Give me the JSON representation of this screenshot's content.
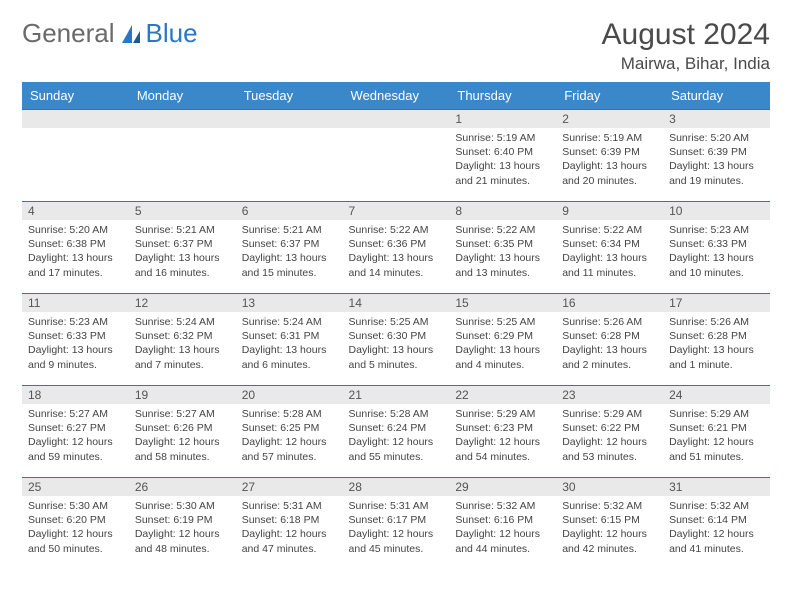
{
  "brand": {
    "word1": "General",
    "word2": "Blue"
  },
  "title": "August 2024",
  "location": "Mairwa, Bihar, India",
  "colors": {
    "header_bg": "#3a87c9",
    "border": "#2a78c4",
    "datebar_bg": "#e9e9e9",
    "text": "#444444",
    "brand_gray": "#6a6a6a",
    "brand_blue": "#2a78c4"
  },
  "day_names": [
    "Sunday",
    "Monday",
    "Tuesday",
    "Wednesday",
    "Thursday",
    "Friday",
    "Saturday"
  ],
  "weeks": [
    [
      null,
      null,
      null,
      null,
      {
        "d": "1",
        "sunrise": "5:19 AM",
        "sunset": "6:40 PM",
        "daylight": "13 hours and 21 minutes."
      },
      {
        "d": "2",
        "sunrise": "5:19 AM",
        "sunset": "6:39 PM",
        "daylight": "13 hours and 20 minutes."
      },
      {
        "d": "3",
        "sunrise": "5:20 AM",
        "sunset": "6:39 PM",
        "daylight": "13 hours and 19 minutes."
      }
    ],
    [
      {
        "d": "4",
        "sunrise": "5:20 AM",
        "sunset": "6:38 PM",
        "daylight": "13 hours and 17 minutes."
      },
      {
        "d": "5",
        "sunrise": "5:21 AM",
        "sunset": "6:37 PM",
        "daylight": "13 hours and 16 minutes."
      },
      {
        "d": "6",
        "sunrise": "5:21 AM",
        "sunset": "6:37 PM",
        "daylight": "13 hours and 15 minutes."
      },
      {
        "d": "7",
        "sunrise": "5:22 AM",
        "sunset": "6:36 PM",
        "daylight": "13 hours and 14 minutes."
      },
      {
        "d": "8",
        "sunrise": "5:22 AM",
        "sunset": "6:35 PM",
        "daylight": "13 hours and 13 minutes."
      },
      {
        "d": "9",
        "sunrise": "5:22 AM",
        "sunset": "6:34 PM",
        "daylight": "13 hours and 11 minutes."
      },
      {
        "d": "10",
        "sunrise": "5:23 AM",
        "sunset": "6:33 PM",
        "daylight": "13 hours and 10 minutes."
      }
    ],
    [
      {
        "d": "11",
        "sunrise": "5:23 AM",
        "sunset": "6:33 PM",
        "daylight": "13 hours and 9 minutes."
      },
      {
        "d": "12",
        "sunrise": "5:24 AM",
        "sunset": "6:32 PM",
        "daylight": "13 hours and 7 minutes."
      },
      {
        "d": "13",
        "sunrise": "5:24 AM",
        "sunset": "6:31 PM",
        "daylight": "13 hours and 6 minutes."
      },
      {
        "d": "14",
        "sunrise": "5:25 AM",
        "sunset": "6:30 PM",
        "daylight": "13 hours and 5 minutes."
      },
      {
        "d": "15",
        "sunrise": "5:25 AM",
        "sunset": "6:29 PM",
        "daylight": "13 hours and 4 minutes."
      },
      {
        "d": "16",
        "sunrise": "5:26 AM",
        "sunset": "6:28 PM",
        "daylight": "13 hours and 2 minutes."
      },
      {
        "d": "17",
        "sunrise": "5:26 AM",
        "sunset": "6:28 PM",
        "daylight": "13 hours and 1 minute."
      }
    ],
    [
      {
        "d": "18",
        "sunrise": "5:27 AM",
        "sunset": "6:27 PM",
        "daylight": "12 hours and 59 minutes."
      },
      {
        "d": "19",
        "sunrise": "5:27 AM",
        "sunset": "6:26 PM",
        "daylight": "12 hours and 58 minutes."
      },
      {
        "d": "20",
        "sunrise": "5:28 AM",
        "sunset": "6:25 PM",
        "daylight": "12 hours and 57 minutes."
      },
      {
        "d": "21",
        "sunrise": "5:28 AM",
        "sunset": "6:24 PM",
        "daylight": "12 hours and 55 minutes."
      },
      {
        "d": "22",
        "sunrise": "5:29 AM",
        "sunset": "6:23 PM",
        "daylight": "12 hours and 54 minutes."
      },
      {
        "d": "23",
        "sunrise": "5:29 AM",
        "sunset": "6:22 PM",
        "daylight": "12 hours and 53 minutes."
      },
      {
        "d": "24",
        "sunrise": "5:29 AM",
        "sunset": "6:21 PM",
        "daylight": "12 hours and 51 minutes."
      }
    ],
    [
      {
        "d": "25",
        "sunrise": "5:30 AM",
        "sunset": "6:20 PM",
        "daylight": "12 hours and 50 minutes."
      },
      {
        "d": "26",
        "sunrise": "5:30 AM",
        "sunset": "6:19 PM",
        "daylight": "12 hours and 48 minutes."
      },
      {
        "d": "27",
        "sunrise": "5:31 AM",
        "sunset": "6:18 PM",
        "daylight": "12 hours and 47 minutes."
      },
      {
        "d": "28",
        "sunrise": "5:31 AM",
        "sunset": "6:17 PM",
        "daylight": "12 hours and 45 minutes."
      },
      {
        "d": "29",
        "sunrise": "5:32 AM",
        "sunset": "6:16 PM",
        "daylight": "12 hours and 44 minutes."
      },
      {
        "d": "30",
        "sunrise": "5:32 AM",
        "sunset": "6:15 PM",
        "daylight": "12 hours and 42 minutes."
      },
      {
        "d": "31",
        "sunrise": "5:32 AM",
        "sunset": "6:14 PM",
        "daylight": "12 hours and 41 minutes."
      }
    ]
  ],
  "labels": {
    "sunrise": "Sunrise: ",
    "sunset": "Sunset: ",
    "daylight": "Daylight: "
  }
}
